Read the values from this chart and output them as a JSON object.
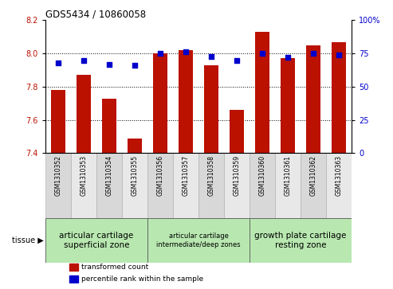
{
  "title": "GDS5434 / 10860058",
  "samples": [
    "GSM1310352",
    "GSM1310353",
    "GSM1310354",
    "GSM1310355",
    "GSM1310356",
    "GSM1310357",
    "GSM1310358",
    "GSM1310359",
    "GSM1310360",
    "GSM1310361",
    "GSM1310362",
    "GSM1310363"
  ],
  "bar_values": [
    7.78,
    7.87,
    7.73,
    7.49,
    8.0,
    8.02,
    7.93,
    7.66,
    8.13,
    7.97,
    8.05,
    8.07
  ],
  "dot_values": [
    68,
    70,
    67,
    66,
    75,
    76,
    73,
    70,
    75,
    72,
    75,
    74
  ],
  "bar_bottom": 7.4,
  "ylim_left": [
    7.4,
    8.2
  ],
  "ylim_right": [
    0,
    100
  ],
  "yticks_left": [
    7.4,
    7.6,
    7.8,
    8.0,
    8.2
  ],
  "yticks_right": [
    0,
    25,
    50,
    75,
    100
  ],
  "bar_color": "#bb1100",
  "dot_color": "#0000cc",
  "tissue_groups": [
    {
      "label": "articular cartilage\nsuperficial zone",
      "start": 0,
      "end": 4,
      "fontsize": 7.5
    },
    {
      "label": "articular cartilage\nintermediate/deep zones",
      "start": 4,
      "end": 8,
      "fontsize": 6.0
    },
    {
      "label": "growth plate cartilage\nresting zone",
      "start": 8,
      "end": 12,
      "fontsize": 7.5
    }
  ],
  "tissue_bg": "#b8e8b0",
  "tissue_edge": "#666666",
  "legend_items": [
    {
      "label": "transformed count",
      "color": "#bb1100"
    },
    {
      "label": "percentile rank within the sample",
      "color": "#0000cc"
    }
  ]
}
